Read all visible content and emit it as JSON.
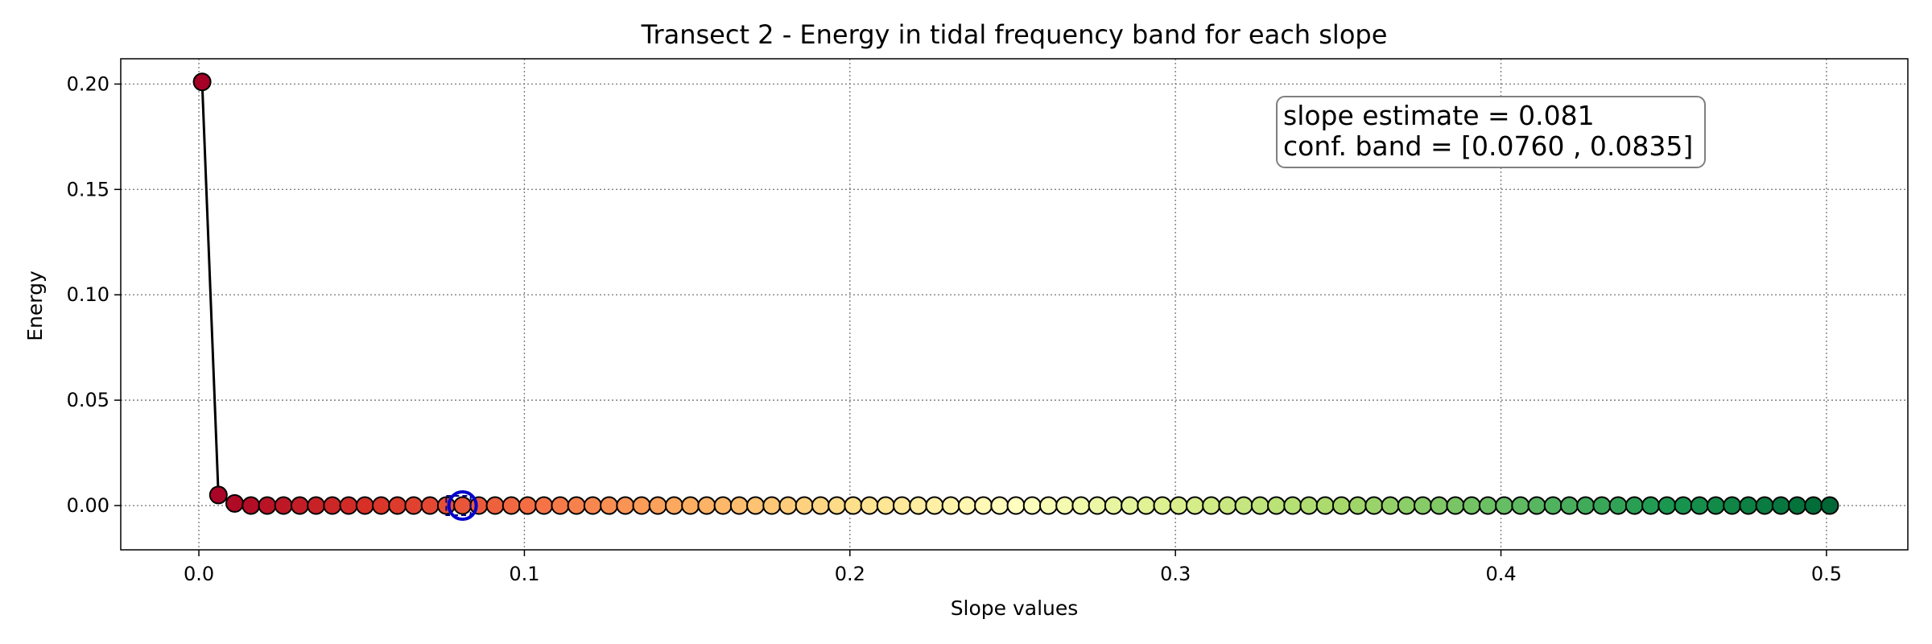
{
  "chart_data": {
    "type": "scatter",
    "title": "Transect 2 - Energy in tidal frequency band for each slope",
    "xlabel": "Slope values",
    "ylabel": "Energy",
    "xlim": [
      -0.024,
      0.525
    ],
    "ylim": [
      -0.021,
      0.212
    ],
    "xticks": [
      0.0,
      0.1,
      0.2,
      0.3,
      0.4,
      0.5
    ],
    "xtick_labels": [
      "0.0",
      "0.1",
      "0.2",
      "0.3",
      "0.4",
      "0.5"
    ],
    "yticks": [
      0.0,
      0.05,
      0.1,
      0.15,
      0.2
    ],
    "ytick_labels": [
      "0.00",
      "0.05",
      "0.10",
      "0.15",
      "0.20"
    ],
    "grid": true,
    "colormap": "RdYlGn",
    "series": [
      {
        "x_start": 0.001,
        "x_step": 0.005,
        "count": 101,
        "values_head": [
          0.201,
          0.005,
          0.001
        ],
        "values_rest": 0.0
      }
    ],
    "estimate_marker": {
      "x": 0.081,
      "y": 0.0,
      "color": "#0000cc"
    },
    "conf_band": [
      0.076,
      0.0835
    ],
    "annotation_lines": [
      "slope estimate = 0.081",
      "conf. band = [0.0760 , 0.0835]"
    ],
    "annotation_position": "top-right",
    "colors": {
      "line": "#000000",
      "grid": "#808080",
      "estimate": "#0000cc",
      "band": "#000080",
      "annotation_border": "#808080"
    }
  }
}
